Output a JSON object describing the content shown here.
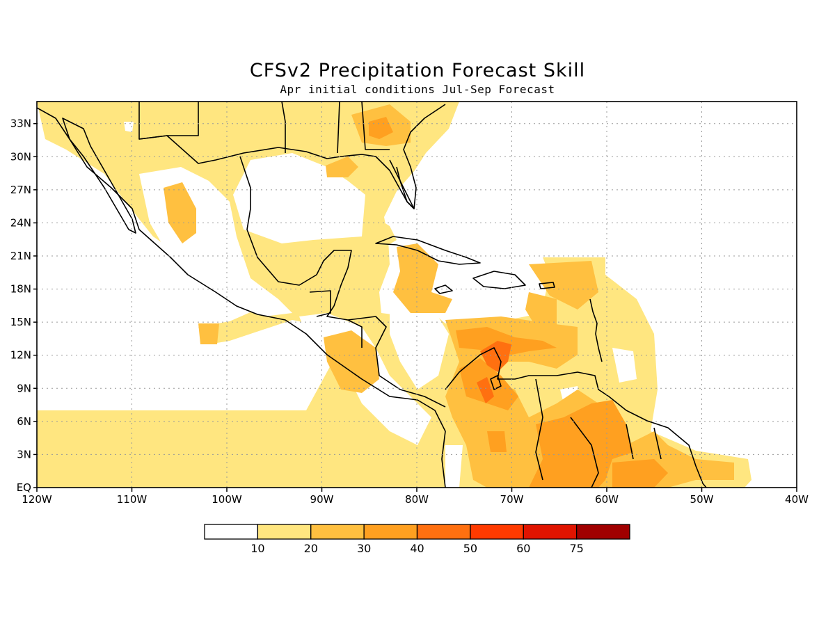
{
  "title": "CFSv2 Precipitation Forecast Skill",
  "subtitle": "Apr initial conditions  Jul-Sep Forecast",
  "map": {
    "region": "Central America, Gulf of Mexico and Caribbean",
    "lon_range": [
      -120,
      -40
    ],
    "lat_range": [
      0,
      35
    ],
    "lat_labels": [
      "EQ",
      "3N",
      "6N",
      "9N",
      "12N",
      "15N",
      "18N",
      "21N",
      "24N",
      "27N",
      "30N",
      "33N"
    ],
    "lon_labels": [
      "120W",
      "110W",
      "100W",
      "90W",
      "80W",
      "70W",
      "60W",
      "50W",
      "40W"
    ],
    "grid": "dotted",
    "highest_skill_area": "northwest Venezuela / Lake Maracaibo (40-50)"
  },
  "colorbar": {
    "colors": [
      "#ffffff",
      "#ffe680",
      "#ffc040",
      "#ffa020",
      "#ff7010",
      "#ff3a00",
      "#e01400",
      "#a00000"
    ],
    "labels": [
      "10",
      "20",
      "30",
      "40",
      "50",
      "60",
      "75"
    ]
  }
}
